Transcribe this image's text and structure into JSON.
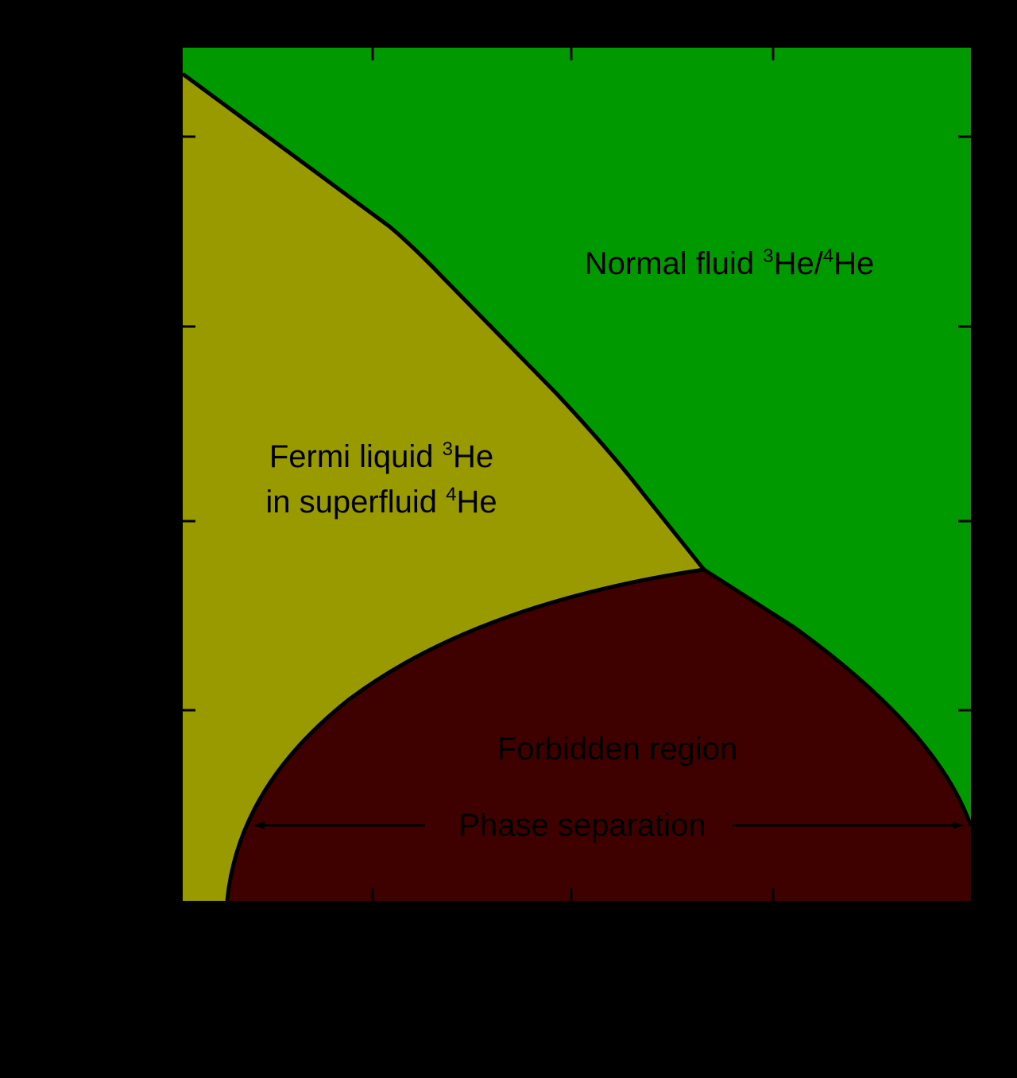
{
  "colors": {
    "background": "#000000",
    "normal_fluid": "#009900",
    "fermi_liquid": "#999900",
    "forbidden": "#3f0000",
    "boundary_line": "#000000",
    "text": "#000000"
  },
  "regions": {
    "normal_fluid": {
      "label_main": "Normal fluid ",
      "sup_1": "3",
      "mid": "He/",
      "sup_2": "4",
      "end": "He"
    },
    "fermi_liquid": {
      "line1_main": "Fermi liquid ",
      "line1_sup": "3",
      "line1_end": "He",
      "line2_main": "in superfluid ",
      "line2_sup": "4",
      "line2_end": "He"
    },
    "forbidden": {
      "label": "Forbidden region"
    }
  },
  "annotations": {
    "phase_separation": "Phase separation"
  }
}
